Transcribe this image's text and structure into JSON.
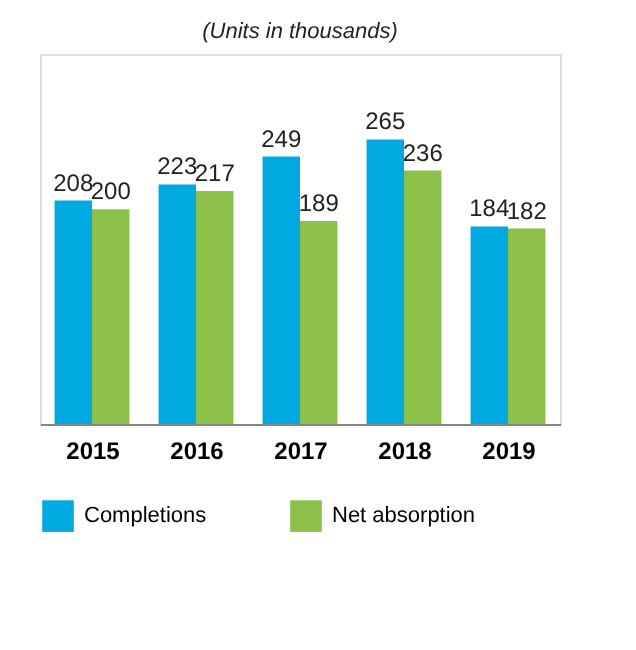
{
  "chart_data": {
    "type": "bar",
    "title": "(Units in thousands)",
    "categories": [
      "2015",
      "2016",
      "2017",
      "2018",
      "2019"
    ],
    "series": [
      {
        "name": "Completions",
        "color": "#00a9e0",
        "values": [
          208,
          223,
          249,
          265,
          184
        ]
      },
      {
        "name": "Net absorption",
        "color": "#8cc04b",
        "values": [
          200,
          217,
          189,
          236,
          182
        ]
      }
    ],
    "data_labels": true,
    "legend": "bottom",
    "grid": false,
    "tick_labels": "x"
  }
}
